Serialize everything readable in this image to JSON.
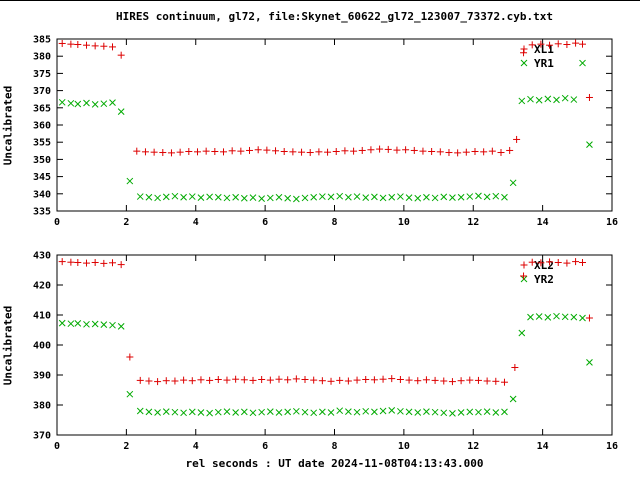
{
  "title": "HIRES continuum, gl72, file:Skynet_60622_gl72_123007_73372.cyb.txt",
  "xlabel": "rel seconds : UT date 2024-11-08T04:13:43.000",
  "colors": {
    "red": "#dd0000",
    "green": "#00aa00",
    "axis": "#000000"
  },
  "chart_data": [
    {
      "type": "scatter",
      "title": "HIRES continuum, gl72, file:Skynet_60622_gl72_123007_73372.cyb.txt",
      "ylabel": "Uncalibrated",
      "xlabel": "rel seconds",
      "xlim": [
        0,
        16
      ],
      "ylim": [
        335,
        385
      ],
      "xticks": [
        0,
        2,
        4,
        6,
        8,
        10,
        12,
        14,
        16
      ],
      "yticks": [
        335,
        340,
        345,
        350,
        355,
        360,
        365,
        370,
        375,
        380,
        385
      ],
      "grid": false,
      "legend_position": "top-right",
      "series": [
        {
          "name": "XL1",
          "marker": "plus",
          "color": "#dd0000",
          "points": [
            [
              0.15,
              383.7
            ],
            [
              0.4,
              383.5
            ],
            [
              0.6,
              383.4
            ],
            [
              0.85,
              383.2
            ],
            [
              1.1,
              383.0
            ],
            [
              1.35,
              382.9
            ],
            [
              1.6,
              382.7
            ],
            [
              1.85,
              380.3
            ],
            [
              2.3,
              352.4
            ],
            [
              2.55,
              352.2
            ],
            [
              2.8,
              352.1
            ],
            [
              3.05,
              352.0
            ],
            [
              3.3,
              351.9
            ],
            [
              3.55,
              352.1
            ],
            [
              3.8,
              352.3
            ],
            [
              4.05,
              352.2
            ],
            [
              4.3,
              352.4
            ],
            [
              4.55,
              352.3
            ],
            [
              4.8,
              352.2
            ],
            [
              5.05,
              352.5
            ],
            [
              5.3,
              352.4
            ],
            [
              5.55,
              352.6
            ],
            [
              5.8,
              352.8
            ],
            [
              6.05,
              352.7
            ],
            [
              6.3,
              352.5
            ],
            [
              6.55,
              352.3
            ],
            [
              6.8,
              352.2
            ],
            [
              7.05,
              352.1
            ],
            [
              7.3,
              352.0
            ],
            [
              7.55,
              352.2
            ],
            [
              7.8,
              352.1
            ],
            [
              8.05,
              352.3
            ],
            [
              8.3,
              352.5
            ],
            [
              8.55,
              352.4
            ],
            [
              8.8,
              352.6
            ],
            [
              9.05,
              352.8
            ],
            [
              9.3,
              353.0
            ],
            [
              9.55,
              352.9
            ],
            [
              9.8,
              352.7
            ],
            [
              10.05,
              352.8
            ],
            [
              10.3,
              352.6
            ],
            [
              10.55,
              352.4
            ],
            [
              10.8,
              352.3
            ],
            [
              11.05,
              352.2
            ],
            [
              11.3,
              352.0
            ],
            [
              11.55,
              351.9
            ],
            [
              11.8,
              352.1
            ],
            [
              12.05,
              352.3
            ],
            [
              12.3,
              352.2
            ],
            [
              12.55,
              352.4
            ],
            [
              12.8,
              352.0
            ],
            [
              13.05,
              352.6
            ],
            [
              13.25,
              355.8
            ],
            [
              13.45,
              381.0
            ],
            [
              13.7,
              383.3
            ],
            [
              13.95,
              383.5
            ],
            [
              14.2,
              383.2
            ],
            [
              14.45,
              383.6
            ],
            [
              14.7,
              383.4
            ],
            [
              14.95,
              383.8
            ],
            [
              15.15,
              383.5
            ],
            [
              15.35,
              368.0
            ]
          ]
        },
        {
          "name": "YR1",
          "marker": "cross",
          "color": "#00aa00",
          "points": [
            [
              0.15,
              366.6
            ],
            [
              0.4,
              366.3
            ],
            [
              0.6,
              366.1
            ],
            [
              0.85,
              366.4
            ],
            [
              1.1,
              366.0
            ],
            [
              1.35,
              366.2
            ],
            [
              1.6,
              366.5
            ],
            [
              1.85,
              363.9
            ],
            [
              2.1,
              343.7
            ],
            [
              2.4,
              339.2
            ],
            [
              2.65,
              339.0
            ],
            [
              2.9,
              338.8
            ],
            [
              3.15,
              339.1
            ],
            [
              3.4,
              339.3
            ],
            [
              3.65,
              339.0
            ],
            [
              3.9,
              339.2
            ],
            [
              4.15,
              338.9
            ],
            [
              4.4,
              339.1
            ],
            [
              4.65,
              339.0
            ],
            [
              4.9,
              338.8
            ],
            [
              5.15,
              339.0
            ],
            [
              5.4,
              338.7
            ],
            [
              5.65,
              338.9
            ],
            [
              5.9,
              338.6
            ],
            [
              6.15,
              338.8
            ],
            [
              6.4,
              339.0
            ],
            [
              6.65,
              338.7
            ],
            [
              6.9,
              338.5
            ],
            [
              7.15,
              338.8
            ],
            [
              7.4,
              339.0
            ],
            [
              7.65,
              339.2
            ],
            [
              7.9,
              339.1
            ],
            [
              8.15,
              339.3
            ],
            [
              8.4,
              339.0
            ],
            [
              8.65,
              339.2
            ],
            [
              8.9,
              338.9
            ],
            [
              9.15,
              339.1
            ],
            [
              9.4,
              338.8
            ],
            [
              9.65,
              339.0
            ],
            [
              9.9,
              339.2
            ],
            [
              10.15,
              338.9
            ],
            [
              10.4,
              338.7
            ],
            [
              10.65,
              339.0
            ],
            [
              10.9,
              338.8
            ],
            [
              11.15,
              339.1
            ],
            [
              11.4,
              338.9
            ],
            [
              11.65,
              339.0
            ],
            [
              11.9,
              339.2
            ],
            [
              12.15,
              339.4
            ],
            [
              12.4,
              339.1
            ],
            [
              12.65,
              339.3
            ],
            [
              12.9,
              339.0
            ],
            [
              13.15,
              343.2
            ],
            [
              13.4,
              367.0
            ],
            [
              13.65,
              367.5
            ],
            [
              13.9,
              367.2
            ],
            [
              14.15,
              367.6
            ],
            [
              14.4,
              367.3
            ],
            [
              14.65,
              367.8
            ],
            [
              14.9,
              367.4
            ],
            [
              15.15,
              378.0
            ],
            [
              15.35,
              354.3
            ]
          ]
        }
      ]
    },
    {
      "type": "scatter",
      "title": "",
      "ylabel": "Uncalibrated",
      "xlabel": "rel seconds",
      "xlim": [
        0,
        16
      ],
      "ylim": [
        370,
        430
      ],
      "xticks": [
        0,
        2,
        4,
        6,
        8,
        10,
        12,
        14,
        16
      ],
      "yticks": [
        370,
        380,
        390,
        400,
        410,
        420,
        430
      ],
      "grid": false,
      "legend_position": "top-right",
      "series": [
        {
          "name": "XL2",
          "marker": "plus",
          "color": "#dd0000",
          "points": [
            [
              0.15,
              427.8
            ],
            [
              0.4,
              427.6
            ],
            [
              0.6,
              427.5
            ],
            [
              0.85,
              427.3
            ],
            [
              1.1,
              427.5
            ],
            [
              1.35,
              427.2
            ],
            [
              1.6,
              427.4
            ],
            [
              1.85,
              426.8
            ],
            [
              2.1,
              396.0
            ],
            [
              2.4,
              388.2
            ],
            [
              2.65,
              388.0
            ],
            [
              2.9,
              387.8
            ],
            [
              3.15,
              388.1
            ],
            [
              3.4,
              388.0
            ],
            [
              3.65,
              388.3
            ],
            [
              3.9,
              388.1
            ],
            [
              4.15,
              388.4
            ],
            [
              4.4,
              388.2
            ],
            [
              4.65,
              388.5
            ],
            [
              4.9,
              388.3
            ],
            [
              5.15,
              388.6
            ],
            [
              5.4,
              388.4
            ],
            [
              5.65,
              388.2
            ],
            [
              5.9,
              388.5
            ],
            [
              6.15,
              388.3
            ],
            [
              6.4,
              388.6
            ],
            [
              6.65,
              388.4
            ],
            [
              6.9,
              388.7
            ],
            [
              7.15,
              388.5
            ],
            [
              7.4,
              388.3
            ],
            [
              7.65,
              388.1
            ],
            [
              7.9,
              387.9
            ],
            [
              8.15,
              388.2
            ],
            [
              8.4,
              388.0
            ],
            [
              8.65,
              388.3
            ],
            [
              8.9,
              388.5
            ],
            [
              9.15,
              388.4
            ],
            [
              9.4,
              388.6
            ],
            [
              9.65,
              388.8
            ],
            [
              9.9,
              388.5
            ],
            [
              10.15,
              388.3
            ],
            [
              10.4,
              388.1
            ],
            [
              10.65,
              388.4
            ],
            [
              10.9,
              388.2
            ],
            [
              11.15,
              388.0
            ],
            [
              11.4,
              387.8
            ],
            [
              11.65,
              388.1
            ],
            [
              11.9,
              388.3
            ],
            [
              12.15,
              388.2
            ],
            [
              12.4,
              388.0
            ],
            [
              12.65,
              387.9
            ],
            [
              12.9,
              387.6
            ],
            [
              13.2,
              392.5
            ],
            [
              13.45,
              423.0
            ],
            [
              13.7,
              427.6
            ],
            [
              13.95,
              427.4
            ],
            [
              14.2,
              427.7
            ],
            [
              14.45,
              427.5
            ],
            [
              14.7,
              427.3
            ],
            [
              14.95,
              427.8
            ],
            [
              15.15,
              427.5
            ],
            [
              15.35,
              409.0
            ]
          ]
        },
        {
          "name": "YR2",
          "marker": "cross",
          "color": "#00aa00",
          "points": [
            [
              0.15,
              407.3
            ],
            [
              0.4,
              407.1
            ],
            [
              0.6,
              407.2
            ],
            [
              0.85,
              406.9
            ],
            [
              1.1,
              407.0
            ],
            [
              1.35,
              406.8
            ],
            [
              1.6,
              406.6
            ],
            [
              1.85,
              406.2
            ],
            [
              2.1,
              383.6
            ],
            [
              2.4,
              378.0
            ],
            [
              2.65,
              377.7
            ],
            [
              2.9,
              377.5
            ],
            [
              3.15,
              377.8
            ],
            [
              3.4,
              377.6
            ],
            [
              3.65,
              377.4
            ],
            [
              3.9,
              377.7
            ],
            [
              4.15,
              377.5
            ],
            [
              4.4,
              377.3
            ],
            [
              4.65,
              377.6
            ],
            [
              4.9,
              377.8
            ],
            [
              5.15,
              377.5
            ],
            [
              5.4,
              377.7
            ],
            [
              5.65,
              377.4
            ],
            [
              5.9,
              377.6
            ],
            [
              6.15,
              377.8
            ],
            [
              6.4,
              377.5
            ],
            [
              6.65,
              377.7
            ],
            [
              6.9,
              377.9
            ],
            [
              7.15,
              377.6
            ],
            [
              7.4,
              377.4
            ],
            [
              7.65,
              377.7
            ],
            [
              7.9,
              377.5
            ],
            [
              8.15,
              378.1
            ],
            [
              8.4,
              377.8
            ],
            [
              8.65,
              377.6
            ],
            [
              8.9,
              377.9
            ],
            [
              9.15,
              377.7
            ],
            [
              9.4,
              378.0
            ],
            [
              9.65,
              378.2
            ],
            [
              9.9,
              377.9
            ],
            [
              10.15,
              377.7
            ],
            [
              10.4,
              377.5
            ],
            [
              10.65,
              377.8
            ],
            [
              10.9,
              377.6
            ],
            [
              11.15,
              377.4
            ],
            [
              11.4,
              377.2
            ],
            [
              11.65,
              377.5
            ],
            [
              11.9,
              377.7
            ],
            [
              12.15,
              377.6
            ],
            [
              12.4,
              377.8
            ],
            [
              12.65,
              377.5
            ],
            [
              12.9,
              377.7
            ],
            [
              13.15,
              382.0
            ],
            [
              13.4,
              404.0
            ],
            [
              13.65,
              409.3
            ],
            [
              13.9,
              409.5
            ],
            [
              14.15,
              409.2
            ],
            [
              14.4,
              409.6
            ],
            [
              14.65,
              409.4
            ],
            [
              14.9,
              409.3
            ],
            [
              15.15,
              409.0
            ],
            [
              15.35,
              394.2
            ]
          ]
        }
      ]
    }
  ]
}
